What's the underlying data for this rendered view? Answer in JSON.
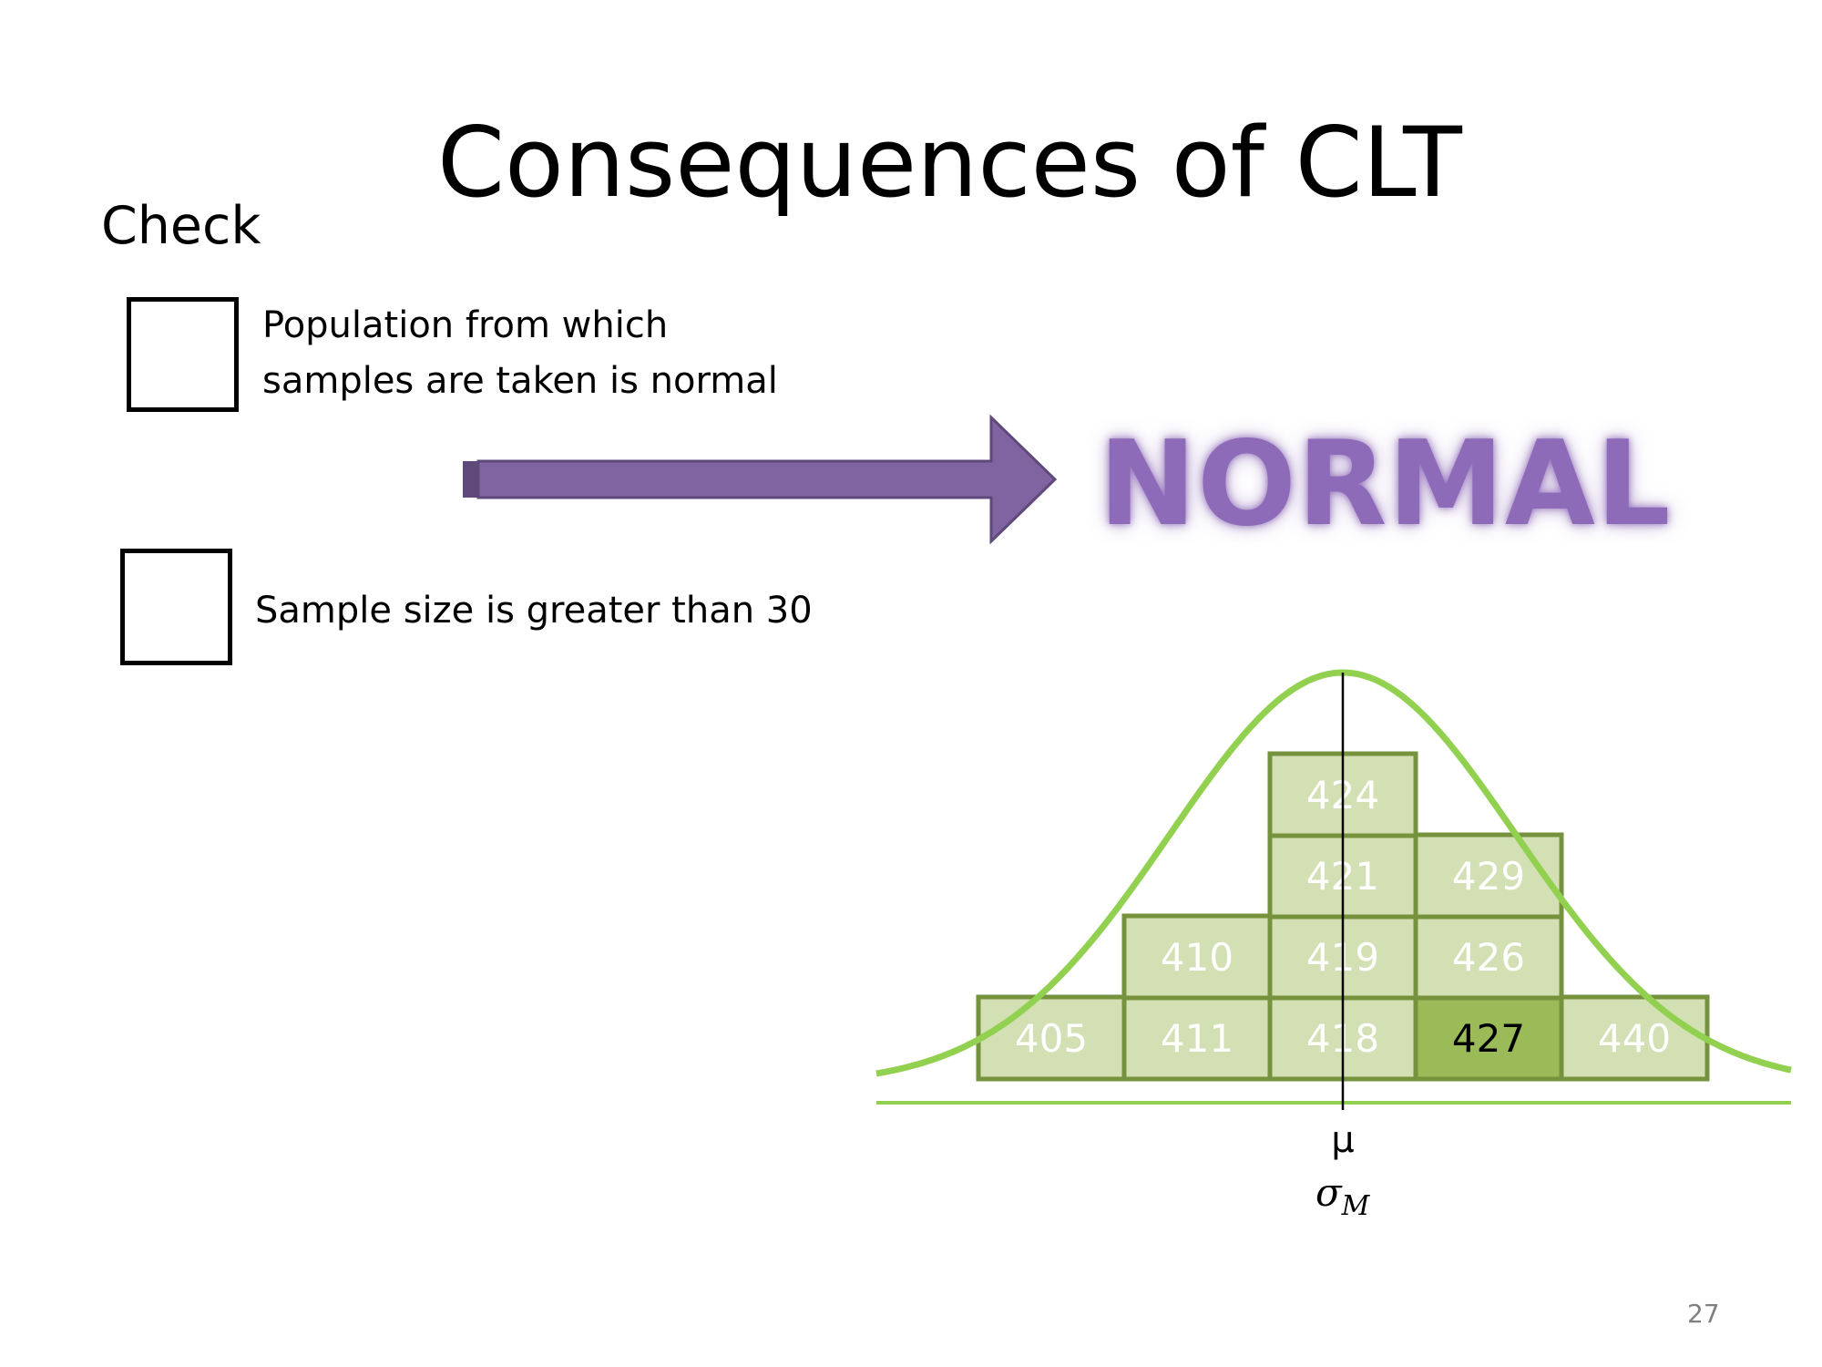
{
  "slide": {
    "title": "Consequences of CLT",
    "check_heading": "Check",
    "conditions": [
      {
        "text": "Population from which samples are taken is normal",
        "checked": false
      },
      {
        "text": "Sample size is greater than 30",
        "checked": false
      }
    ],
    "result_label": "NORMAL",
    "page_number": "27"
  },
  "diagram": {
    "mean_label": "μ",
    "sd_label": "σ",
    "sd_label_subscript": "M",
    "tiles": [
      {
        "value": "405",
        "highlighted": false
      },
      {
        "value": "411",
        "highlighted": false
      },
      {
        "value": "418",
        "highlighted": false
      },
      {
        "value": "427",
        "highlighted": true
      },
      {
        "value": "440",
        "highlighted": false
      },
      {
        "value": "410",
        "highlighted": false
      },
      {
        "value": "419",
        "highlighted": false
      },
      {
        "value": "426",
        "highlighted": false
      },
      {
        "value": "421",
        "highlighted": false
      },
      {
        "value": "429",
        "highlighted": false
      },
      {
        "value": "424",
        "highlighted": false
      }
    ]
  },
  "colors": {
    "tile_fill": "#d2e0b4",
    "tile_highlight_fill": "#9bbb59",
    "tile_border": "#76923c",
    "tile_text": "#ffffff",
    "tile_highlight_text": "#000000",
    "curve": "#92d050",
    "arrow_fill": "#8064a2",
    "arrow_border": "#5f497a",
    "result_text": "#8e6bb8"
  }
}
